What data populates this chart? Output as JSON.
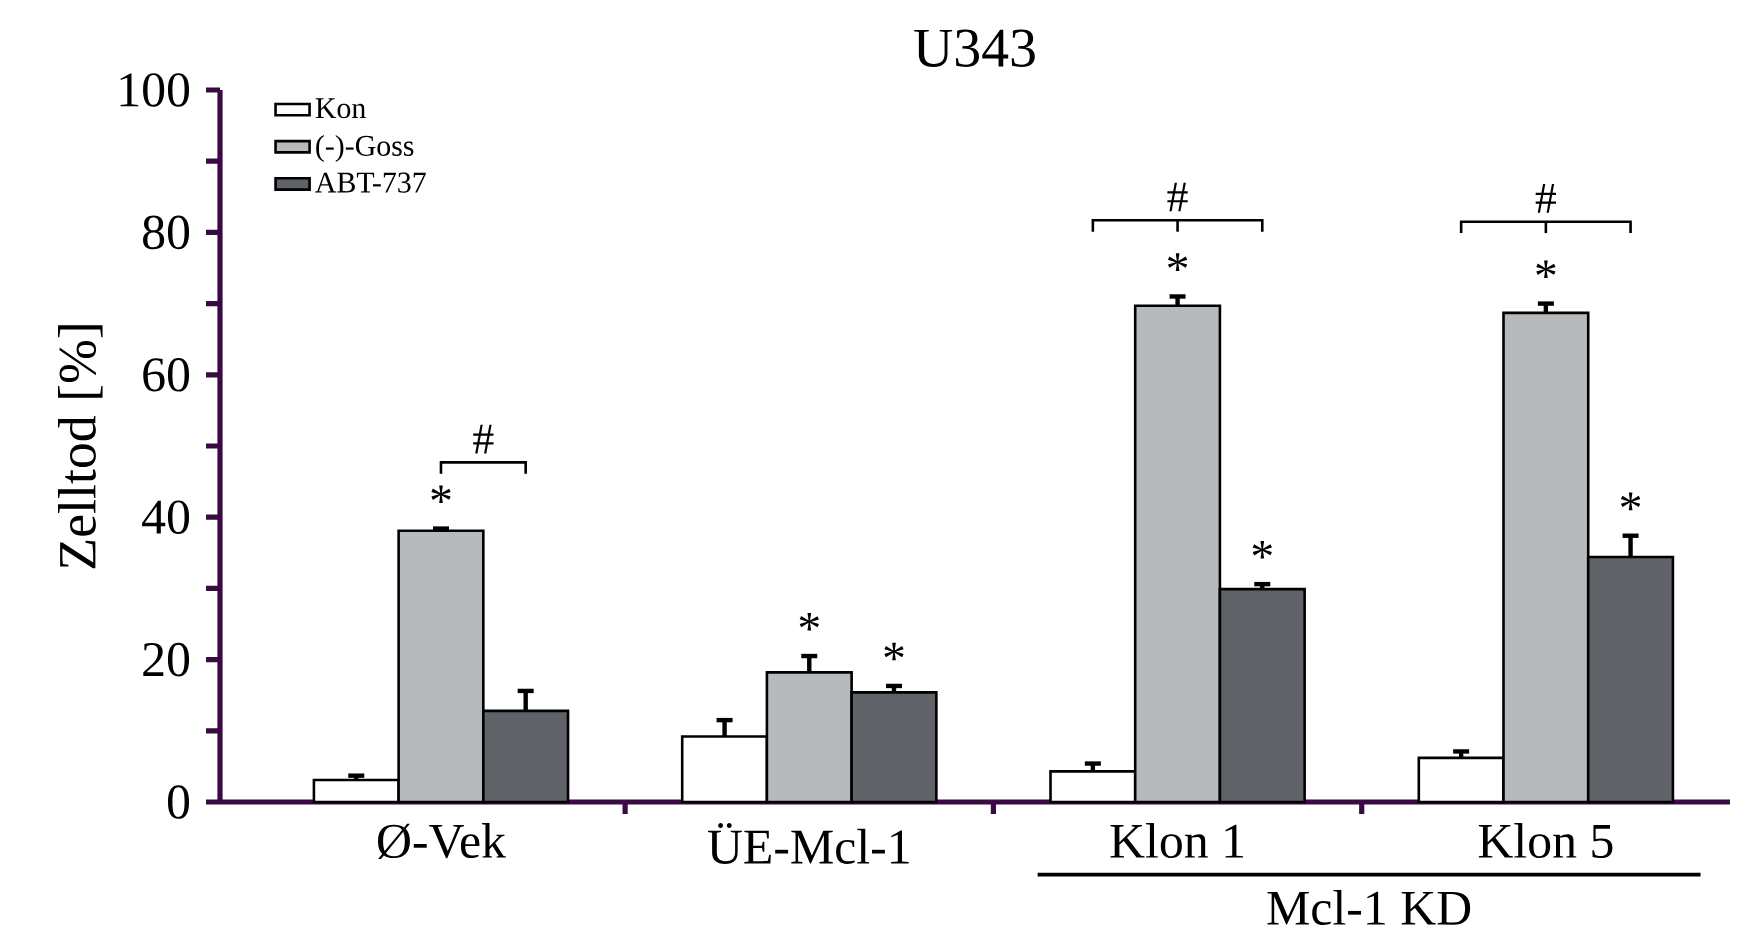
{
  "chart_data": {
    "type": "bar",
    "title": "U343",
    "ylabel": "Zelltod [%]",
    "categories": [
      "Ø-Vek",
      "ÜE-Mcl-1",
      "Klon 1",
      "Klon 5"
    ],
    "series": [
      {
        "name": "Kon",
        "color": "#ffffff",
        "values": [
          3.1,
          9.2,
          4.3,
          6.2
        ],
        "errors": [
          0.6,
          2.3,
          1.1,
          0.9
        ]
      },
      {
        "name": "(-)-Goss",
        "color": "#b7babd",
        "values": [
          38.1,
          18.2,
          69.7,
          68.7
        ],
        "errors": [
          0.3,
          2.3,
          1.3,
          1.3
        ]
      },
      {
        "name": "ABT-737",
        "color": "#5f6367",
        "values": [
          12.8,
          15.4,
          29.9,
          34.4
        ],
        "errors": [
          2.8,
          0.9,
          0.7,
          3.0
        ]
      }
    ],
    "ylim": [
      0,
      100
    ],
    "yticks": [
      0,
      {
        "value": 10,
        "label": null
      },
      20,
      {
        "value": 30,
        "label": null
      },
      40,
      {
        "value": 50,
        "label": null
      },
      60,
      {
        "value": 70,
        "label": null
      },
      80,
      {
        "value": 90,
        "label": null
      },
      100
    ],
    "legend": "top left",
    "grid": false,
    "annotations": [
      "*",
      "*",
      "*",
      "*",
      "*",
      "*",
      "*",
      "#",
      "#",
      "#",
      "Mcl-1 KD"
    ]
  }
}
